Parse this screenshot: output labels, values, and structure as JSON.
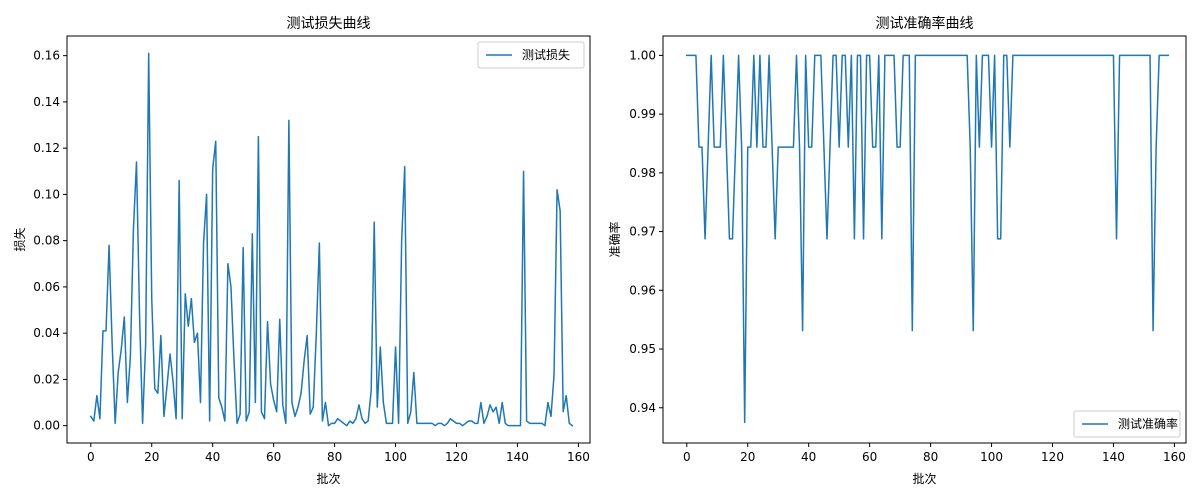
{
  "chart_data": [
    {
      "type": "line",
      "title": "测试损失曲线",
      "xlabel": "批次",
      "ylabel": "损失",
      "xlim": [
        -7.8,
        163.8
      ],
      "ylim": [
        -0.0075,
        0.1685
      ],
      "xticks": [
        0,
        20,
        40,
        60,
        80,
        100,
        120,
        140,
        160
      ],
      "xtick_labels": [
        "0",
        "20",
        "40",
        "60",
        "80",
        "100",
        "120",
        "140",
        "160"
      ],
      "yticks": [
        0.0,
        0.02,
        0.04,
        0.06,
        0.08,
        0.1,
        0.12,
        0.14,
        0.16
      ],
      "ytick_labels": [
        "0.00",
        "0.02",
        "0.04",
        "0.06",
        "0.08",
        "0.10",
        "0.12",
        "0.14",
        "0.16"
      ],
      "grid": false,
      "legend": "upper right",
      "series": [
        {
          "name": "测试损失",
          "color": "#1f77b4",
          "values": [
            0.004,
            0.002,
            0.013,
            0.003,
            0.041,
            0.041,
            0.078,
            0.036,
            0.001,
            0.023,
            0.033,
            0.047,
            0.01,
            0.03,
            0.085,
            0.114,
            0.048,
            0.001,
            0.035,
            0.161,
            0.055,
            0.016,
            0.014,
            0.039,
            0.004,
            0.017,
            0.031,
            0.019,
            0.003,
            0.106,
            0.003,
            0.057,
            0.043,
            0.055,
            0.036,
            0.04,
            0.01,
            0.079,
            0.1,
            0.002,
            0.111,
            0.123,
            0.012,
            0.008,
            0.002,
            0.07,
            0.06,
            0.028,
            0.001,
            0.005,
            0.077,
            0.002,
            0.006,
            0.083,
            0.01,
            0.125,
            0.006,
            0.003,
            0.045,
            0.018,
            0.011,
            0.006,
            0.046,
            0.009,
            0.001,
            0.132,
            0.01,
            0.004,
            0.008,
            0.014,
            0.028,
            0.039,
            0.005,
            0.008,
            0.04,
            0.079,
            0.002,
            0.01,
            0.0,
            0.001,
            0.001,
            0.003,
            0.002,
            0.001,
            0.0,
            0.002,
            0.001,
            0.003,
            0.009,
            0.003,
            0.001,
            0.002,
            0.015,
            0.088,
            0.008,
            0.034,
            0.01,
            0.001,
            0.001,
            0.001,
            0.034,
            0.001,
            0.08,
            0.112,
            0.001,
            0.006,
            0.023,
            0.001,
            0.001,
            0.001,
            0.001,
            0.001,
            0.001,
            0.0,
            0.001,
            0.001,
            0.0,
            0.001,
            0.003,
            0.002,
            0.001,
            0.001,
            0.0,
            0.001,
            0.002,
            0.002,
            0.001,
            0.001,
            0.01,
            0.001,
            0.004,
            0.009,
            0.006,
            0.008,
            0.001,
            0.01,
            0.001,
            0.0,
            0.0,
            0.0,
            0.0,
            0.0,
            0.11,
            0.002,
            0.001,
            0.001,
            0.001,
            0.001,
            0.001,
            0.0,
            0.01,
            0.004,
            0.022,
            0.102,
            0.093,
            0.006,
            0.013,
            0.001,
            0.0
          ]
        }
      ]
    },
    {
      "type": "line",
      "title": "测试准确率曲线",
      "xlabel": "批次",
      "ylabel": "准确率",
      "xlim": [
        -7.8,
        163.8
      ],
      "ylim": [
        0.934,
        1.0033
      ],
      "xticks": [
        0,
        20,
        40,
        60,
        80,
        100,
        120,
        140,
        160
      ],
      "xtick_labels": [
        "0",
        "20",
        "40",
        "60",
        "80",
        "100",
        "120",
        "140",
        "160"
      ],
      "yticks": [
        0.94,
        0.95,
        0.96,
        0.97,
        0.98,
        0.99,
        1.0
      ],
      "ytick_labels": [
        "0.94",
        "0.95",
        "0.96",
        "0.97",
        "0.98",
        "0.99",
        "1.00"
      ],
      "grid": false,
      "legend": "lower right",
      "series": [
        {
          "name": "测试准确率",
          "color": "#1f77b4",
          "values": [
            1.0,
            1.0,
            1.0,
            1.0,
            0.984375,
            0.984375,
            0.96875,
            0.984375,
            1.0,
            0.984375,
            0.984375,
            0.984375,
            1.0,
            0.984375,
            0.96875,
            0.96875,
            0.984375,
            1.0,
            0.984375,
            0.9375,
            0.984375,
            0.984375,
            1.0,
            0.984375,
            1.0,
            0.984375,
            0.984375,
            1.0,
            0.984375,
            0.96875,
            0.984375,
            0.984375,
            0.984375,
            0.984375,
            0.984375,
            0.984375,
            1.0,
            0.984375,
            0.953125,
            1.0,
            0.984375,
            0.984375,
            1.0,
            1.0,
            1.0,
            0.984375,
            0.96875,
            0.984375,
            1.0,
            1.0,
            0.984375,
            1.0,
            1.0,
            0.984375,
            1.0,
            0.96875,
            1.0,
            1.0,
            0.96875,
            1.0,
            1.0,
            0.984375,
            0.984375,
            1.0,
            0.96875,
            1.0,
            1.0,
            1.0,
            1.0,
            0.984375,
            0.984375,
            1.0,
            1.0,
            1.0,
            0.953125,
            1.0,
            1.0,
            1.0,
            1.0,
            1.0,
            1.0,
            1.0,
            1.0,
            1.0,
            1.0,
            1.0,
            1.0,
            1.0,
            1.0,
            1.0,
            1.0,
            1.0,
            1.0,
            0.984375,
            0.953125,
            1.0,
            0.984375,
            1.0,
            1.0,
            1.0,
            0.984375,
            1.0,
            0.96875,
            0.96875,
            1.0,
            1.0,
            0.984375,
            1.0,
            1.0,
            1.0,
            1.0,
            1.0,
            1.0,
            1.0,
            1.0,
            1.0,
            1.0,
            1.0,
            1.0,
            1.0,
            1.0,
            1.0,
            1.0,
            1.0,
            1.0,
            1.0,
            1.0,
            1.0,
            1.0,
            1.0,
            1.0,
            1.0,
            1.0,
            1.0,
            1.0,
            1.0,
            1.0,
            1.0,
            1.0,
            1.0,
            1.0,
            0.96875,
            1.0,
            1.0,
            1.0,
            1.0,
            1.0,
            1.0,
            1.0,
            1.0,
            1.0,
            1.0,
            1.0,
            0.953125,
            0.984375,
            1.0,
            1.0,
            1.0,
            1.0
          ]
        }
      ]
    }
  ]
}
